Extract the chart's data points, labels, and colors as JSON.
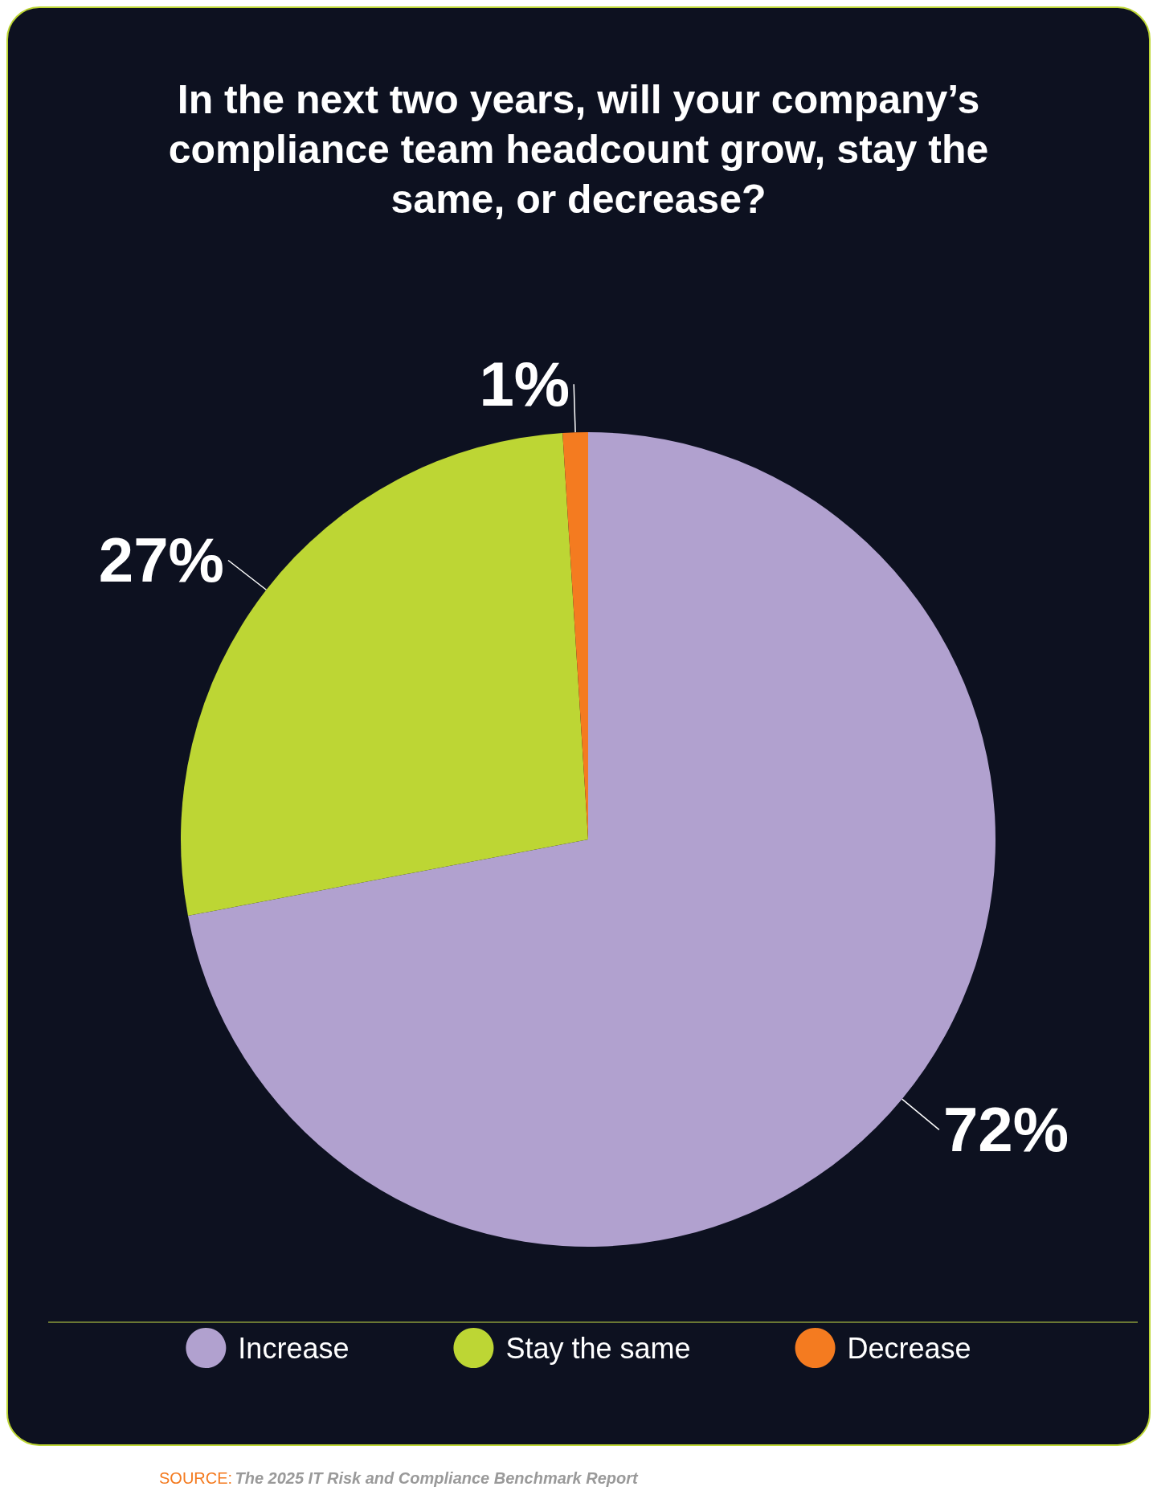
{
  "chart_data": {
    "type": "pie",
    "title": "In the next two years, will your company’s\ncompliance team headcount grow, stay the\nsame, or decrease?",
    "categories": [
      "Increase",
      "Stay the same",
      "Decrease"
    ],
    "values": [
      72,
      27,
      1
    ],
    "colors": [
      "#b1a1cf",
      "#bdd634",
      "#f47b20"
    ],
    "value_labels": [
      "72%",
      "27%",
      "1%"
    ],
    "legend": "bottom",
    "annotations": [
      "SOURCE: The 2025 IT Risk and Compliance Benchmark Report"
    ]
  }
}
